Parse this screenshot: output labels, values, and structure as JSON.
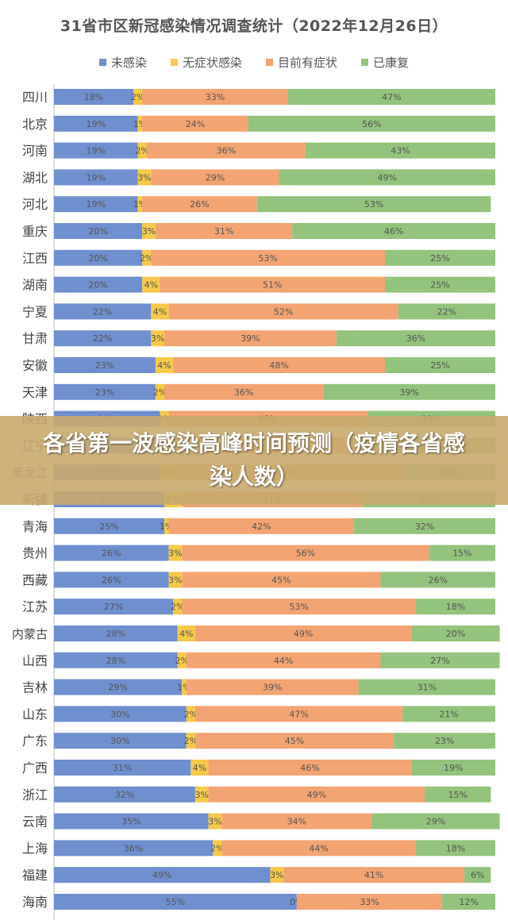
{
  "overlay": {
    "caption": "各省第一波感染高峰时间预测（疫情各省感染人数）"
  },
  "colors": {
    "uninfected": "#6f8fcf",
    "asymptomatic": "#f5c94a",
    "symptomatic": "#f2a472",
    "recovered": "#93c37c"
  },
  "chart_data": {
    "type": "bar",
    "orientation": "horizontal",
    "stacked": true,
    "title": "31省市区新冠感染情况调查统计（2022年12月26日）",
    "legend_position": "top",
    "categories": [
      "四川",
      "北京",
      "河南",
      "湖北",
      "河北",
      "重庆",
      "江西",
      "湖南",
      "宁夏",
      "甘肃",
      "安徽",
      "天津",
      "陕西",
      "辽宁",
      "黑龙江",
      "新疆",
      "青海",
      "贵州",
      "西藏",
      "江苏",
      "内蒙古",
      "山西",
      "吉林",
      "山东",
      "广东",
      "广西",
      "浙江",
      "云南",
      "上海",
      "福建",
      "海南"
    ],
    "xlim": [
      0,
      100
    ],
    "series": [
      {
        "name": "未感染",
        "values": [
          18,
          19,
          19,
          19,
          19,
          20,
          20,
          20,
          22,
          22,
          23,
          23,
          24,
          24,
          24,
          25,
          25,
          26,
          26,
          27,
          28,
          28,
          29,
          30,
          30,
          31,
          32,
          35,
          36,
          49,
          55
        ]
      },
      {
        "name": "无症状感染",
        "values": [
          2,
          1,
          2,
          3,
          1,
          3,
          2,
          4,
          4,
          3,
          4,
          2,
          2,
          3,
          3,
          4,
          1,
          3,
          3,
          2,
          4,
          2,
          1,
          2,
          2,
          4,
          3,
          3,
          2,
          3,
          0
        ]
      },
      {
        "name": "目前有症状",
        "values": [
          33,
          24,
          36,
          29,
          26,
          31,
          53,
          51,
          52,
          39,
          48,
          36,
          45,
          43,
          52,
          41,
          42,
          56,
          45,
          53,
          49,
          44,
          39,
          47,
          45,
          46,
          49,
          34,
          44,
          41,
          33
        ]
      },
      {
        "name": "已康复",
        "values": [
          47,
          56,
          43,
          49,
          53,
          46,
          25,
          25,
          22,
          36,
          25,
          39,
          29,
          30,
          21,
          30,
          32,
          15,
          26,
          18,
          20,
          27,
          31,
          21,
          23,
          19,
          15,
          29,
          18,
          6,
          12
        ]
      }
    ]
  }
}
